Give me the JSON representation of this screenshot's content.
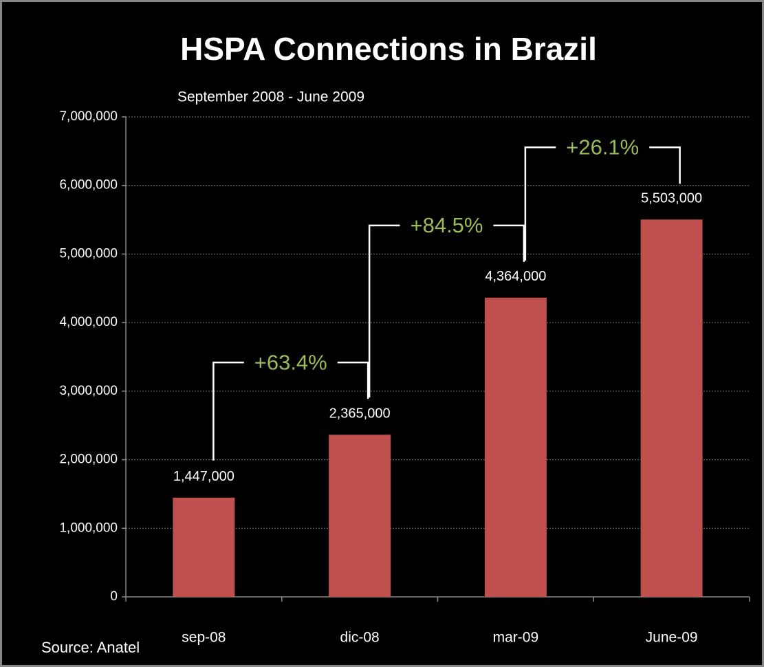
{
  "chart_data": {
    "type": "bar",
    "title": "HSPA Connections in Brazil",
    "subtitle": "September 2008 - June 2009",
    "source": "Source: Anatel",
    "categories": [
      "sep-08",
      "dic-08",
      "mar-09",
      "June-09"
    ],
    "values": [
      1447000,
      2365000,
      4364000,
      5503000
    ],
    "value_labels": [
      "1,447,000",
      "2,365,000",
      "4,364,000",
      "5,503,000"
    ],
    "color": "#c0504d",
    "annotation_color": "#9bbb59",
    "annotations": [
      "+63.4%",
      "+84.5%",
      "+26.1%"
    ],
    "ylim": [
      0,
      7000000
    ],
    "yticks": [
      0,
      {
        "value": 1000000,
        "label": "1,000,000"
      },
      {
        "value": 2000000,
        "label": "2,000,000"
      },
      {
        "value": 3000000,
        "label": "3,000,000"
      },
      {
        "value": 4000000,
        "label": "4,000,000"
      },
      {
        "value": 5000000,
        "label": "5,000,000"
      },
      {
        "value": 6000000,
        "label": "6,000,000"
      },
      {
        "value": 7000000,
        "label": "7,000,000"
      }
    ],
    "grid": true
  }
}
